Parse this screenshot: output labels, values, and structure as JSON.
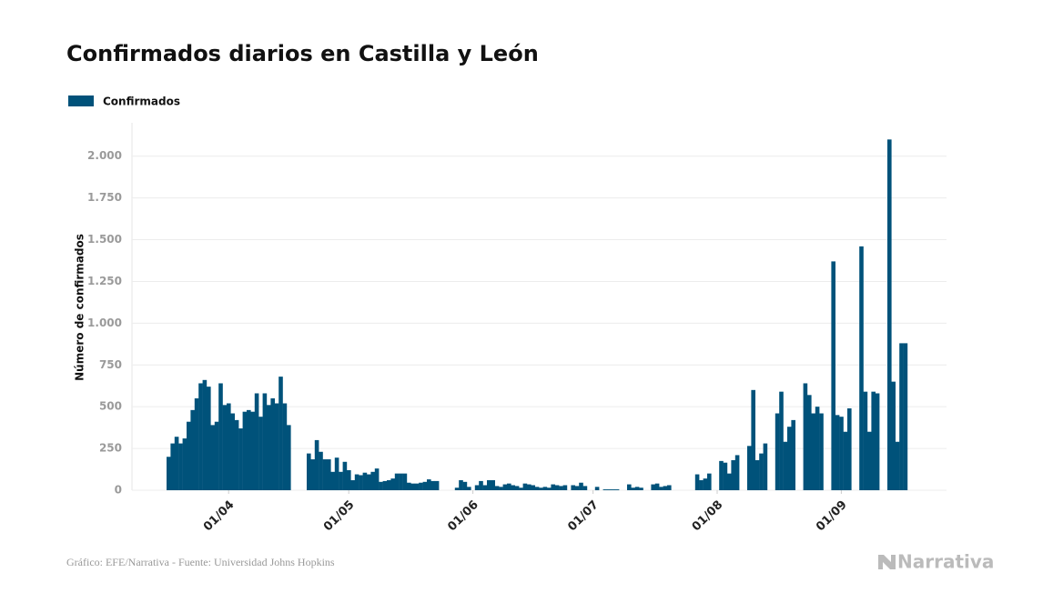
{
  "chart_data": {
    "type": "bar",
    "title": "Confirmados diarios en Castilla y León",
    "ylabel": "Número de confirmados",
    "source": "Gráfico: EFE/Narrativa - Fuente: Universidad Johns Hopkins",
    "brand": "Narrativa",
    "legend": "top-left",
    "grid": true,
    "ylim": [
      0,
      2200
    ],
    "yticks": [
      0,
      250,
      500,
      750,
      {
        "value": 1000,
        "label": "1.000"
      },
      {
        "value": 1250,
        "label": "1.250"
      },
      {
        "value": 1500,
        "label": "1.500"
      },
      {
        "value": 1750,
        "label": "1.750"
      },
      {
        "value": 2000,
        "label": "2.000"
      }
    ],
    "categories": [
      null,
      null,
      null,
      null,
      null,
      null,
      null,
      null,
      null,
      null,
      null,
      null,
      null,
      null,
      null,
      "01/04",
      null,
      null,
      null,
      null,
      null,
      null,
      null,
      null,
      null,
      null,
      null,
      null,
      null,
      null,
      null,
      null,
      null,
      null,
      null,
      null,
      null,
      null,
      null,
      null,
      null,
      null,
      null,
      null,
      null,
      "01/05",
      null,
      null,
      null,
      null,
      null,
      null,
      null,
      null,
      null,
      null,
      null,
      null,
      null,
      null,
      null,
      null,
      null,
      null,
      null,
      null,
      null,
      null,
      null,
      null,
      null,
      null,
      null,
      null,
      null,
      null,
      "01/06",
      null,
      null,
      null,
      null,
      null,
      null,
      null,
      null,
      null,
      null,
      null,
      null,
      null,
      null,
      null,
      null,
      null,
      null,
      null,
      null,
      null,
      null,
      null,
      null,
      null,
      null,
      null,
      null,
      null,
      "01/07",
      null,
      null,
      null,
      null,
      null,
      null,
      null,
      null,
      null,
      null,
      null,
      null,
      null,
      null,
      null,
      null,
      null,
      null,
      null,
      null,
      null,
      null,
      null,
      null,
      null,
      null,
      null,
      null,
      null,
      null,
      "01/08",
      null,
      null,
      null,
      null,
      null,
      null,
      null,
      null,
      null,
      null,
      null,
      null,
      null,
      null,
      null,
      null,
      null,
      null,
      null,
      null,
      null,
      null,
      null,
      null,
      null,
      null,
      null,
      null,
      null,
      null,
      "01/09",
      null,
      null,
      null,
      null,
      null,
      null,
      null,
      null,
      null,
      null,
      null,
      null,
      null,
      null,
      null,
      null
    ],
    "series": [
      {
        "name": "Confirmados",
        "color": "#00527a",
        "values": [
          200,
          280,
          320,
          280,
          310,
          410,
          480,
          550,
          640,
          660,
          620,
          390,
          410,
          640,
          510,
          520,
          460,
          420,
          370,
          470,
          480,
          470,
          580,
          440,
          580,
          510,
          550,
          520,
          680,
          520,
          390,
          null,
          null,
          null,
          null,
          220,
          185,
          300,
          230,
          185,
          185,
          110,
          195,
          110,
          170,
          120,
          60,
          95,
          90,
          105,
          95,
          110,
          130,
          50,
          55,
          60,
          70,
          100,
          100,
          100,
          45,
          40,
          40,
          45,
          50,
          65,
          55,
          55,
          null,
          null,
          null,
          null,
          15,
          60,
          50,
          20,
          null,
          30,
          55,
          30,
          60,
          60,
          25,
          20,
          35,
          40,
          30,
          25,
          15,
          40,
          35,
          30,
          20,
          15,
          20,
          15,
          35,
          30,
          25,
          30,
          null,
          30,
          25,
          45,
          25,
          null,
          null,
          20,
          null,
          5,
          5,
          5,
          5,
          null,
          null,
          35,
          15,
          20,
          15,
          null,
          null,
          35,
          40,
          20,
          25,
          30,
          null,
          null,
          null,
          null,
          null,
          null,
          95,
          60,
          70,
          100,
          null,
          null,
          175,
          165,
          100,
          180,
          210,
          null,
          null,
          265,
          600,
          180,
          220,
          280,
          null,
          null,
          460,
          590,
          290,
          380,
          420,
          null,
          null,
          640,
          570,
          460,
          500,
          460,
          null,
          null,
          1370,
          450,
          440,
          350,
          490,
          null,
          null,
          1460,
          590,
          350,
          590,
          580,
          null,
          null,
          2100,
          650,
          290,
          880,
          880
        ]
      }
    ]
  }
}
